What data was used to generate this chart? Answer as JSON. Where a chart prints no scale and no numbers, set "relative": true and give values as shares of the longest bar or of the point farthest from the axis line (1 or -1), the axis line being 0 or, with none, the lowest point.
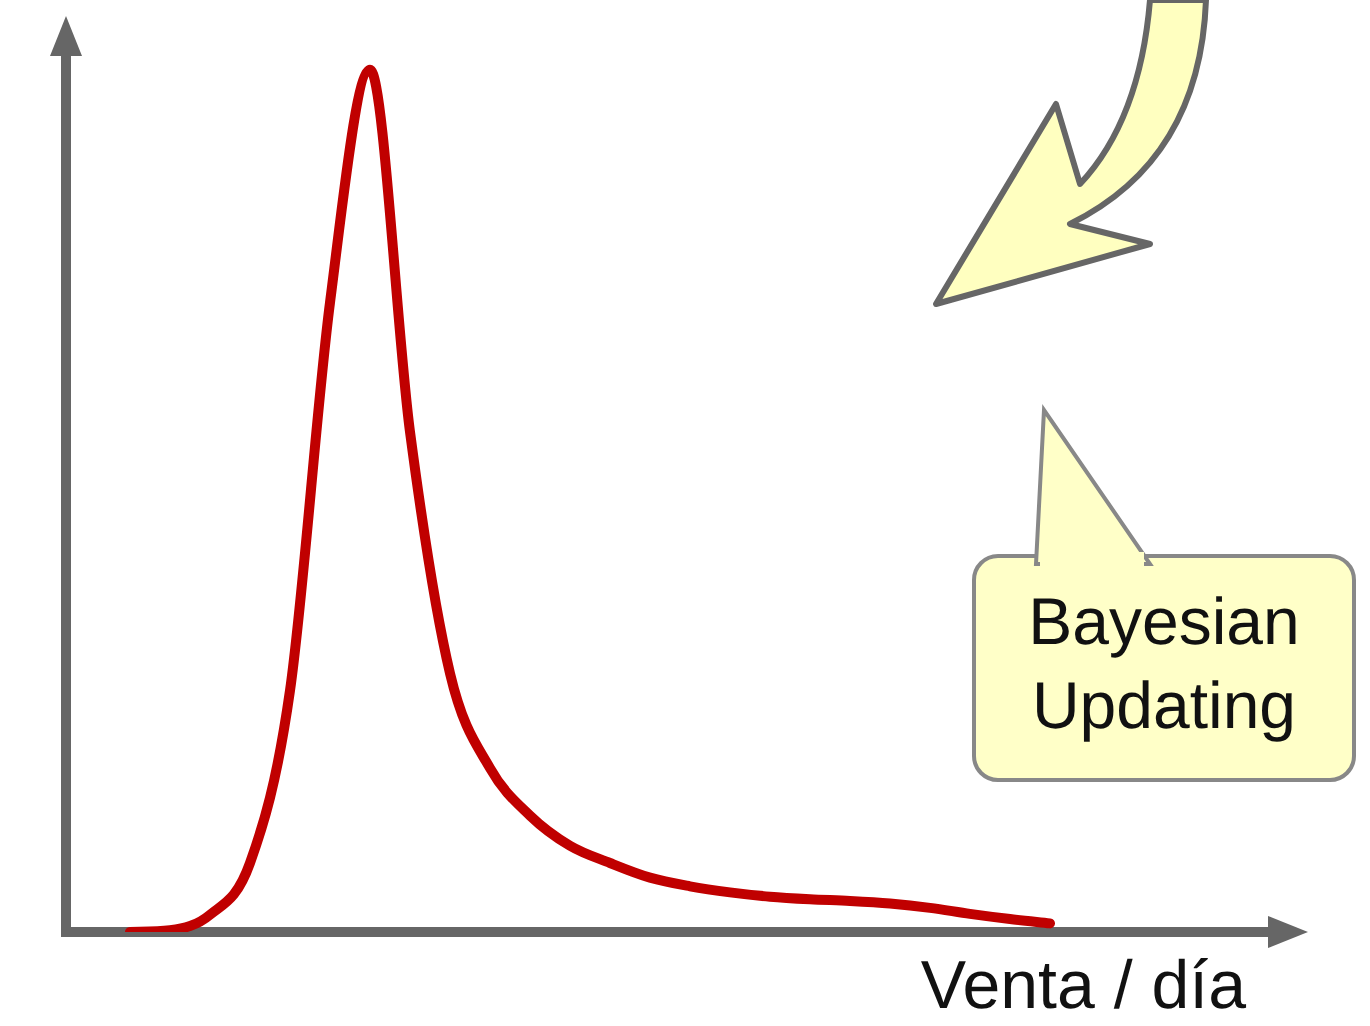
{
  "chart_data": {
    "type": "line",
    "relative": true,
    "xlabel": "Venta / día",
    "annotations": [
      "Bayesian Updating"
    ],
    "legend": false,
    "marker": "none",
    "categories": [
      null,
      null,
      null,
      null,
      null,
      null,
      null,
      null,
      null,
      null,
      null,
      null,
      null,
      null,
      null,
      null,
      null,
      null,
      null,
      null,
      null,
      null,
      null,
      null
    ],
    "series": [
      {
        "color": "#c00000",
        "values": [
          0,
          0.002,
          0.02,
          0.08,
          0.28,
          0.73,
          1,
          0.58,
          0.3,
          0.19,
          0.135,
          0.1,
          0.08,
          0.063,
          0.053,
          0.046,
          0.041,
          0.038,
          0.036,
          0.033,
          0.028,
          0.021,
          0.015,
          0.01
        ]
      }
    ]
  }
}
